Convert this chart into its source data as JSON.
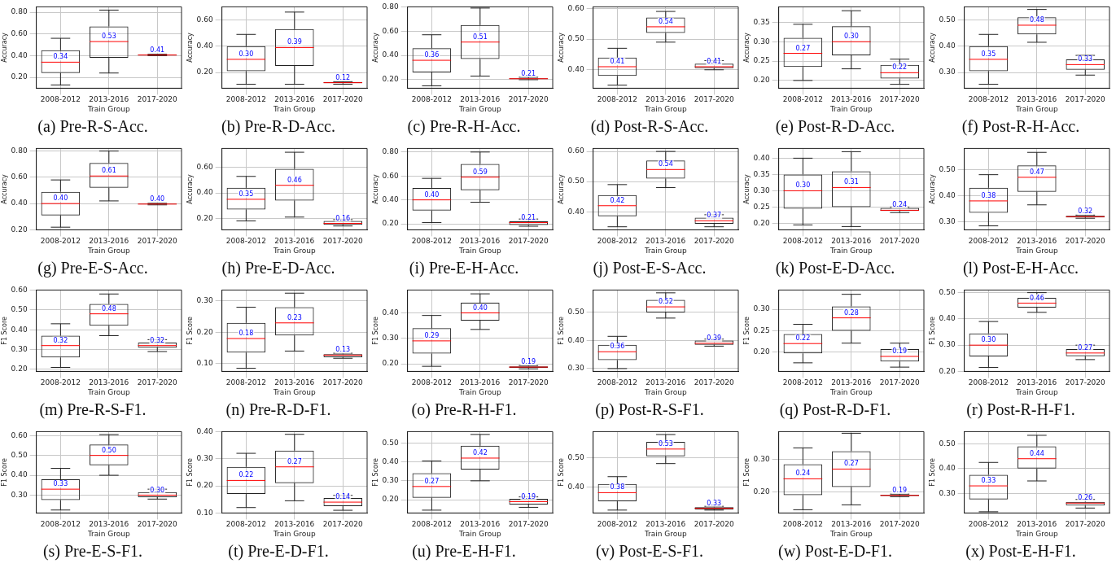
{
  "chart_data": [
    {
      "type": "box",
      "title": "(a) Pre-R-S-Acc.",
      "xlabel": "Train Group",
      "ylabel": "Accuracy",
      "categories": [
        "2008-2012",
        "2013-2016",
        "2017-2020"
      ],
      "ylim": [
        0.1,
        0.85
      ],
      "yticks": [
        {
          "value": 0.2,
          "label": "0.20"
        },
        {
          "value": 0.4,
          "label": "0.40"
        },
        {
          "value": 0.6,
          "label": "0.60"
        },
        {
          "value": 0.8,
          "label": "0.80"
        }
      ],
      "grid": true,
      "value_labels": [
        "0.34",
        "0.53",
        "0.41"
      ],
      "boxes": [
        {
          "low": 0.13,
          "q1": 0.24,
          "median": 0.34,
          "q3": 0.45,
          "high": 0.56
        },
        {
          "low": 0.24,
          "q1": 0.38,
          "median": 0.53,
          "q3": 0.67,
          "high": 0.82
        },
        {
          "low": 0.4,
          "q1": 0.403,
          "median": 0.406,
          "q3": 0.41,
          "high": 0.413
        }
      ]
    },
    {
      "type": "box",
      "title": "(b) Pre-R-D-Acc.",
      "xlabel": "Train Group",
      "ylabel": "Accuracy",
      "categories": [
        "2008-2012",
        "2013-2016",
        "2017-2020"
      ],
      "ylim": [
        0.08,
        0.7
      ],
      "yticks": [
        {
          "value": 0.2,
          "label": "0.20"
        },
        {
          "value": 0.4,
          "label": "0.40"
        },
        {
          "value": 0.6,
          "label": "0.60"
        }
      ],
      "grid": true,
      "value_labels": [
        "0.30",
        "0.39",
        "0.12"
      ],
      "boxes": [
        {
          "low": 0.11,
          "q1": 0.21,
          "median": 0.3,
          "q3": 0.4,
          "high": 0.49
        },
        {
          "low": 0.11,
          "q1": 0.25,
          "median": 0.39,
          "q3": 0.53,
          "high": 0.66
        },
        {
          "low": 0.11,
          "q1": 0.118,
          "median": 0.122,
          "q3": 0.127,
          "high": 0.13
        }
      ]
    },
    {
      "type": "box",
      "title": "(c) Pre-R-H-Acc.",
      "xlabel": "Train Group",
      "ylabel": "Accuracy",
      "categories": [
        "2008-2012",
        "2013-2016",
        "2017-2020"
      ],
      "ylim": [
        0.13,
        0.8
      ],
      "yticks": [
        {
          "value": 0.2,
          "label": "0.20"
        },
        {
          "value": 0.4,
          "label": "0.40"
        },
        {
          "value": 0.6,
          "label": "0.60"
        },
        {
          "value": 0.8,
          "label": "0.80"
        }
      ],
      "grid": true,
      "value_labels": [
        "0.36",
        "0.51",
        "0.21"
      ],
      "boxes": [
        {
          "low": 0.15,
          "q1": 0.26,
          "median": 0.36,
          "q3": 0.46,
          "high": 0.57
        },
        {
          "low": 0.23,
          "q1": 0.37,
          "median": 0.51,
          "q3": 0.65,
          "high": 0.79
        },
        {
          "low": 0.2,
          "q1": 0.205,
          "median": 0.208,
          "q3": 0.212,
          "high": 0.22
        }
      ]
    },
    {
      "type": "box",
      "title": "(d) Post-R-S-Acc.",
      "xlabel": "Train Group",
      "ylabel": "Accuracy",
      "categories": [
        "2008-2012",
        "2013-2016",
        "2017-2020"
      ],
      "ylim": [
        0.34,
        0.605
      ],
      "yticks": [
        {
          "value": 0.4,
          "label": "0.40"
        },
        {
          "value": 0.5,
          "label": "0.50"
        },
        {
          "value": 0.6,
          "label": "0.60"
        }
      ],
      "grid": true,
      "value_labels": [
        "0.41",
        "0.54",
        "0.41"
      ],
      "boxes": [
        {
          "low": 0.35,
          "q1": 0.38,
          "median": 0.41,
          "q3": 0.44,
          "high": 0.47
        },
        {
          "low": 0.49,
          "q1": 0.52,
          "median": 0.54,
          "q3": 0.57,
          "high": 0.59
        },
        {
          "low": 0.4,
          "q1": 0.405,
          "median": 0.41,
          "q3": 0.42,
          "high": 0.43
        }
      ]
    },
    {
      "type": "box",
      "title": "(e) Post-R-D-Acc.",
      "xlabel": "Train Group",
      "ylabel": "Accuracy",
      "categories": [
        "2008-2012",
        "2013-2016",
        "2017-2020"
      ],
      "ylim": [
        0.18,
        0.39
      ],
      "yticks": [
        {
          "value": 0.2,
          "label": "0.20"
        },
        {
          "value": 0.25,
          "label": "0.25"
        },
        {
          "value": 0.3,
          "label": "0.30"
        },
        {
          "value": 0.35,
          "label": "0.35"
        }
      ],
      "grid": true,
      "value_labels": [
        "0.27",
        "0.30",
        "0.22"
      ],
      "boxes": [
        {
          "low": 0.2,
          "q1": 0.235,
          "median": 0.27,
          "q3": 0.31,
          "high": 0.345
        },
        {
          "low": 0.23,
          "q1": 0.265,
          "median": 0.3,
          "q3": 0.34,
          "high": 0.38
        },
        {
          "low": 0.19,
          "q1": 0.205,
          "median": 0.22,
          "q3": 0.24,
          "high": 0.255
        }
      ]
    },
    {
      "type": "box",
      "title": "(f) Post-R-H-Acc.",
      "xlabel": "Train Group",
      "ylabel": "Accuracy",
      "categories": [
        "2008-2012",
        "2013-2016",
        "2017-2020"
      ],
      "ylim": [
        0.24,
        0.55
      ],
      "yticks": [
        {
          "value": 0.3,
          "label": "0.30"
        },
        {
          "value": 0.4,
          "label": "0.40"
        },
        {
          "value": 0.5,
          "label": "0.50"
        }
      ],
      "grid": true,
      "value_labels": [
        "0.35",
        "0.48",
        "0.33"
      ],
      "boxes": [
        {
          "low": 0.255,
          "q1": 0.305,
          "median": 0.35,
          "q3": 0.4,
          "high": 0.445
        },
        {
          "low": 0.415,
          "q1": 0.445,
          "median": 0.48,
          "q3": 0.51,
          "high": 0.54
        },
        {
          "low": 0.29,
          "q1": 0.31,
          "median": 0.33,
          "q3": 0.35,
          "high": 0.365
        }
      ]
    },
    {
      "type": "box",
      "title": "(g) Pre-E-S-Acc.",
      "xlabel": "Train Group",
      "ylabel": "Accuracy",
      "categories": [
        "2008-2012",
        "2013-2016",
        "2017-2020"
      ],
      "ylim": [
        0.2,
        0.82
      ],
      "yticks": [
        {
          "value": 0.2,
          "label": "0.20"
        },
        {
          "value": 0.4,
          "label": "0.40"
        },
        {
          "value": 0.6,
          "label": "0.60"
        },
        {
          "value": 0.8,
          "label": "0.80"
        }
      ],
      "grid": true,
      "value_labels": [
        "0.40",
        "0.61",
        "0.40"
      ],
      "boxes": [
        {
          "low": 0.22,
          "q1": 0.31,
          "median": 0.4,
          "q3": 0.49,
          "high": 0.58
        },
        {
          "low": 0.42,
          "q1": 0.52,
          "median": 0.61,
          "q3": 0.71,
          "high": 0.8
        },
        {
          "low": 0.39,
          "q1": 0.393,
          "median": 0.396,
          "q3": 0.4,
          "high": 0.402
        }
      ]
    },
    {
      "type": "box",
      "title": "(h) Pre-E-D-Acc.",
      "xlabel": "Train Group",
      "ylabel": "Accuracy",
      "categories": [
        "2008-2012",
        "2013-2016",
        "2017-2020"
      ],
      "ylim": [
        0.11,
        0.75
      ],
      "yticks": [
        {
          "value": 0.2,
          "label": "0.20"
        },
        {
          "value": 0.4,
          "label": "0.40"
        },
        {
          "value": 0.6,
          "label": "0.60"
        }
      ],
      "grid": true,
      "value_labels": [
        "0.35",
        "0.46",
        "0.16"
      ],
      "boxes": [
        {
          "low": 0.18,
          "q1": 0.27,
          "median": 0.35,
          "q3": 0.44,
          "high": 0.53
        },
        {
          "low": 0.21,
          "q1": 0.34,
          "median": 0.46,
          "q3": 0.59,
          "high": 0.72
        },
        {
          "low": 0.14,
          "q1": 0.15,
          "median": 0.16,
          "q3": 0.18,
          "high": 0.19
        }
      ]
    },
    {
      "type": "box",
      "title": "(i) Pre-E-H-Acc.",
      "xlabel": "Train Group",
      "ylabel": "Accuracy",
      "categories": [
        "2008-2012",
        "2013-2016",
        "2017-2020"
      ],
      "ylim": [
        0.15,
        0.83
      ],
      "yticks": [
        {
          "value": 0.2,
          "label": "0.20"
        },
        {
          "value": 0.4,
          "label": "0.40"
        },
        {
          "value": 0.6,
          "label": "0.60"
        },
        {
          "value": 0.8,
          "label": "0.80"
        }
      ],
      "grid": true,
      "value_labels": [
        "0.40",
        "0.59",
        "0.21"
      ],
      "boxes": [
        {
          "low": 0.21,
          "q1": 0.31,
          "median": 0.4,
          "q3": 0.5,
          "high": 0.58
        },
        {
          "low": 0.38,
          "q1": 0.48,
          "median": 0.59,
          "q3": 0.7,
          "high": 0.8
        },
        {
          "low": 0.18,
          "q1": 0.19,
          "median": 0.21,
          "q3": 0.22,
          "high": 0.24
        }
      ]
    },
    {
      "type": "box",
      "title": "(j) Post-E-S-Acc.",
      "xlabel": "Train Group",
      "ylabel": "Accuracy",
      "categories": [
        "2008-2012",
        "2013-2016",
        "2017-2020"
      ],
      "ylim": [
        0.34,
        0.61
      ],
      "yticks": [
        {
          "value": 0.4,
          "label": "0.40"
        },
        {
          "value": 0.5,
          "label": "0.50"
        },
        {
          "value": 0.6,
          "label": "0.60"
        }
      ],
      "grid": true,
      "value_labels": [
        "0.42",
        "0.54",
        "0.37"
      ],
      "boxes": [
        {
          "low": 0.35,
          "q1": 0.385,
          "median": 0.42,
          "q3": 0.455,
          "high": 0.49
        },
        {
          "low": 0.48,
          "q1": 0.51,
          "median": 0.54,
          "q3": 0.57,
          "high": 0.6
        },
        {
          "low": 0.35,
          "q1": 0.36,
          "median": 0.37,
          "q3": 0.38,
          "high": 0.39
        }
      ]
    },
    {
      "type": "box",
      "title": "(k) Post-E-D-Acc.",
      "xlabel": "Train Group",
      "ylabel": "Accuracy",
      "categories": [
        "2008-2012",
        "2013-2016",
        "2017-2020"
      ],
      "ylim": [
        0.18,
        0.43
      ],
      "yticks": [
        {
          "value": 0.2,
          "label": "0.20"
        },
        {
          "value": 0.25,
          "label": "0.25"
        },
        {
          "value": 0.3,
          "label": "0.30"
        },
        {
          "value": 0.35,
          "label": "0.35"
        },
        {
          "value": 0.4,
          "label": "0.40"
        }
      ],
      "grid": true,
      "value_labels": [
        "0.30",
        "0.31",
        "0.24"
      ],
      "boxes": [
        {
          "low": 0.195,
          "q1": 0.245,
          "median": 0.3,
          "q3": 0.35,
          "high": 0.4
        },
        {
          "low": 0.19,
          "q1": 0.25,
          "median": 0.31,
          "q3": 0.36,
          "high": 0.42
        },
        {
          "low": 0.233,
          "q1": 0.238,
          "median": 0.24,
          "q3": 0.247,
          "high": 0.25
        }
      ]
    },
    {
      "type": "box",
      "title": "(l) Post-E-H-Acc.",
      "xlabel": "Train Group",
      "ylabel": "Accuracy",
      "categories": [
        "2008-2012",
        "2013-2016",
        "2017-2020"
      ],
      "ylim": [
        0.27,
        0.58
      ],
      "yticks": [
        {
          "value": 0.3,
          "label": "0.30"
        },
        {
          "value": 0.4,
          "label": "0.40"
        },
        {
          "value": 0.5,
          "label": "0.50"
        }
      ],
      "grid": true,
      "value_labels": [
        "0.38",
        "0.47",
        "0.32"
      ],
      "boxes": [
        {
          "low": 0.285,
          "q1": 0.335,
          "median": 0.38,
          "q3": 0.43,
          "high": 0.48
        },
        {
          "low": 0.365,
          "q1": 0.415,
          "median": 0.47,
          "q3": 0.515,
          "high": 0.565
        },
        {
          "low": 0.314,
          "q1": 0.317,
          "median": 0.32,
          "q3": 0.323,
          "high": 0.326
        }
      ]
    },
    {
      "type": "box",
      "title": "(m) Pre-R-S-F1.",
      "xlabel": "Train Group",
      "ylabel": "F1 Score",
      "categories": [
        "2008-2012",
        "2013-2016",
        "2017-2020"
      ],
      "ylim": [
        0.19,
        0.6
      ],
      "yticks": [
        {
          "value": 0.2,
          "label": "0.20"
        },
        {
          "value": 0.3,
          "label": "0.30"
        },
        {
          "value": 0.4,
          "label": "0.40"
        },
        {
          "value": 0.5,
          "label": "0.50"
        },
        {
          "value": 0.6,
          "label": "0.60"
        }
      ],
      "grid": true,
      "value_labels": [
        "0.32",
        "0.48",
        "0.32"
      ],
      "boxes": [
        {
          "low": 0.21,
          "q1": 0.26,
          "median": 0.32,
          "q3": 0.37,
          "high": 0.43
        },
        {
          "low": 0.37,
          "q1": 0.42,
          "median": 0.48,
          "q3": 0.53,
          "high": 0.58
        },
        {
          "low": 0.29,
          "q1": 0.31,
          "median": 0.32,
          "q3": 0.335,
          "high": 0.35
        }
      ]
    },
    {
      "type": "box",
      "title": "(n) Pre-R-D-F1.",
      "xlabel": "Train Group",
      "ylabel": "F1 Score",
      "categories": [
        "2008-2012",
        "2013-2016",
        "2017-2020"
      ],
      "ylim": [
        0.075,
        0.335
      ],
      "yticks": [
        {
          "value": 0.1,
          "label": "0.10"
        },
        {
          "value": 0.2,
          "label": "0.20"
        },
        {
          "value": 0.3,
          "label": "0.30"
        }
      ],
      "grid": true,
      "value_labels": [
        "0.18",
        "0.23",
        "0.13"
      ],
      "boxes": [
        {
          "low": 0.085,
          "q1": 0.135,
          "median": 0.18,
          "q3": 0.23,
          "high": 0.28
        },
        {
          "low": 0.14,
          "q1": 0.19,
          "median": 0.23,
          "q3": 0.28,
          "high": 0.325
        },
        {
          "low": 0.117,
          "q1": 0.12,
          "median": 0.127,
          "q3": 0.13,
          "high": 0.133
        }
      ]
    },
    {
      "type": "box",
      "title": "(o) Pre-R-H-F1.",
      "xlabel": "Train Group",
      "ylabel": "F1 Score",
      "categories": [
        "2008-2012",
        "2013-2016",
        "2017-2020"
      ],
      "ylim": [
        0.17,
        0.49
      ],
      "yticks": [
        {
          "value": 0.2,
          "label": "0.20"
        },
        {
          "value": 0.3,
          "label": "0.30"
        },
        {
          "value": 0.4,
          "label": "0.40"
        }
      ],
      "grid": true,
      "value_labels": [
        "0.29",
        "0.40",
        "0.19"
      ],
      "boxes": [
        {
          "low": 0.19,
          "q1": 0.24,
          "median": 0.29,
          "q3": 0.34,
          "high": 0.39
        },
        {
          "low": 0.335,
          "q1": 0.37,
          "median": 0.4,
          "q3": 0.44,
          "high": 0.475
        },
        {
          "low": 0.18,
          "q1": 0.183,
          "median": 0.187,
          "q3": 0.19,
          "high": 0.193
        }
      ]
    },
    {
      "type": "box",
      "title": "(p) Post-R-S-F1.",
      "xlabel": "Train Group",
      "ylabel": "F1 Score",
      "categories": [
        "2008-2012",
        "2013-2016",
        "2017-2020"
      ],
      "ylim": [
        0.29,
        0.58
      ],
      "yticks": [
        {
          "value": 0.3,
          "label": "0.30"
        },
        {
          "value": 0.4,
          "label": "0.40"
        },
        {
          "value": 0.5,
          "label": "0.50"
        }
      ],
      "grid": true,
      "value_labels": [
        "0.36",
        "0.52",
        "0.39"
      ],
      "boxes": [
        {
          "low": 0.3,
          "q1": 0.33,
          "median": 0.36,
          "q3": 0.385,
          "high": 0.415
        },
        {
          "low": 0.48,
          "q1": 0.5,
          "median": 0.52,
          "q3": 0.545,
          "high": 0.57
        },
        {
          "low": 0.38,
          "q1": 0.385,
          "median": 0.39,
          "q3": 0.4,
          "high": 0.405
        }
      ]
    },
    {
      "type": "box",
      "title": "(q) Post-R-D-F1.",
      "xlabel": "Train Group",
      "ylabel": "F1 Score",
      "categories": [
        "2008-2012",
        "2013-2016",
        "2017-2020"
      ],
      "ylim": [
        0.155,
        0.345
      ],
      "yticks": [
        {
          "value": 0.2,
          "label": "0.20"
        },
        {
          "value": 0.25,
          "label": "0.25"
        },
        {
          "value": 0.3,
          "label": "0.30"
        }
      ],
      "grid": true,
      "value_labels": [
        "0.22",
        "0.28",
        "0.19"
      ],
      "boxes": [
        {
          "low": 0.175,
          "q1": 0.197,
          "median": 0.22,
          "q3": 0.242,
          "high": 0.265
        },
        {
          "low": 0.221,
          "q1": 0.25,
          "median": 0.28,
          "q3": 0.307,
          "high": 0.335
        },
        {
          "low": 0.165,
          "q1": 0.178,
          "median": 0.19,
          "q3": 0.207,
          "high": 0.221
        }
      ]
    },
    {
      "type": "box",
      "title": "(r) Post-R-H-F1.",
      "xlabel": "Train Group",
      "ylabel": "F1 Score",
      "categories": [
        "2008-2012",
        "2013-2016",
        "2017-2020"
      ],
      "ylim": [
        0.2,
        0.51
      ],
      "yticks": [
        {
          "value": 0.2,
          "label": "0.20"
        },
        {
          "value": 0.3,
          "label": "0.30"
        },
        {
          "value": 0.4,
          "label": "0.40"
        },
        {
          "value": 0.5,
          "label": "0.50"
        }
      ],
      "grid": true,
      "value_labels": [
        "0.30",
        "0.46",
        "0.27"
      ],
      "boxes": [
        {
          "low": 0.215,
          "q1": 0.257,
          "median": 0.3,
          "q3": 0.345,
          "high": 0.39
        },
        {
          "low": 0.425,
          "q1": 0.443,
          "median": 0.46,
          "q3": 0.48,
          "high": 0.5
        },
        {
          "low": 0.245,
          "q1": 0.258,
          "median": 0.27,
          "q3": 0.285,
          "high": 0.3
        }
      ]
    },
    {
      "type": "box",
      "title": "(s) Pre-E-S-F1.",
      "xlabel": "Train Group",
      "ylabel": "F1 Score",
      "categories": [
        "2008-2012",
        "2013-2016",
        "2017-2020"
      ],
      "ylim": [
        0.21,
        0.62
      ],
      "yticks": [
        {
          "value": 0.3,
          "label": "0.30"
        },
        {
          "value": 0.4,
          "label": "0.40"
        },
        {
          "value": 0.5,
          "label": "0.50"
        },
        {
          "value": 0.6,
          "label": "0.60"
        }
      ],
      "grid": true,
      "value_labels": [
        "0.33",
        "0.50",
        "0.30"
      ],
      "boxes": [
        {
          "low": 0.225,
          "q1": 0.275,
          "median": 0.33,
          "q3": 0.38,
          "high": 0.435
        },
        {
          "low": 0.4,
          "q1": 0.45,
          "median": 0.5,
          "q3": 0.555,
          "high": 0.605
        },
        {
          "low": 0.28,
          "q1": 0.29,
          "median": 0.3,
          "q3": 0.315,
          "high": 0.33
        }
      ]
    },
    {
      "type": "box",
      "title": "(t) Pre-E-D-F1.",
      "xlabel": "Train Group",
      "ylabel": "F1 Score",
      "categories": [
        "2008-2012",
        "2013-2016",
        "2017-2020"
      ],
      "ylim": [
        0.1,
        0.4
      ],
      "yticks": [
        {
          "value": 0.1,
          "label": "0.10"
        },
        {
          "value": 0.2,
          "label": "0.20"
        },
        {
          "value": 0.3,
          "label": "0.30"
        },
        {
          "value": 0.4,
          "label": "0.40"
        }
      ],
      "grid": true,
      "value_labels": [
        "0.22",
        "0.27",
        "0.14"
      ],
      "boxes": [
        {
          "low": 0.12,
          "q1": 0.17,
          "median": 0.22,
          "q3": 0.27,
          "high": 0.32
        },
        {
          "low": 0.145,
          "q1": 0.21,
          "median": 0.27,
          "q3": 0.33,
          "high": 0.39
        },
        {
          "low": 0.11,
          "q1": 0.125,
          "median": 0.14,
          "q3": 0.155,
          "high": 0.165
        }
      ]
    },
    {
      "type": "box",
      "title": "(u) Pre-E-H-F1.",
      "xlabel": "Train Group",
      "ylabel": "F1 Score",
      "categories": [
        "2008-2012",
        "2013-2016",
        "2017-2020"
      ],
      "ylim": [
        0.13,
        0.56
      ],
      "yticks": [
        {
          "value": 0.2,
          "label": "0.20"
        },
        {
          "value": 0.3,
          "label": "0.30"
        },
        {
          "value": 0.4,
          "label": "0.40"
        },
        {
          "value": 0.5,
          "label": "0.50"
        }
      ],
      "grid": true,
      "value_labels": [
        "0.27",
        "0.42",
        "0.19"
      ],
      "boxes": [
        {
          "low": 0.145,
          "q1": 0.21,
          "median": 0.27,
          "q3": 0.34,
          "high": 0.405
        },
        {
          "low": 0.3,
          "q1": 0.36,
          "median": 0.42,
          "q3": 0.485,
          "high": 0.545
        },
        {
          "low": 0.16,
          "q1": 0.175,
          "median": 0.19,
          "q3": 0.205,
          "high": 0.215
        }
      ]
    },
    {
      "type": "box",
      "title": "(v) Post-E-S-F1.",
      "xlabel": "Train Group",
      "ylabel": "F1 Score",
      "categories": [
        "2008-2012",
        "2013-2016",
        "2017-2020"
      ],
      "ylim": [
        0.31,
        0.59
      ],
      "yticks": [
        {
          "value": 0.4,
          "label": "0.40"
        },
        {
          "value": 0.5,
          "label": "0.50"
        }
      ],
      "grid": true,
      "value_labels": [
        "0.38",
        "0.53",
        "0.33"
      ],
      "boxes": [
        {
          "low": 0.32,
          "q1": 0.35,
          "median": 0.38,
          "q3": 0.41,
          "high": 0.435
        },
        {
          "low": 0.48,
          "q1": 0.505,
          "median": 0.53,
          "q3": 0.555,
          "high": 0.58
        },
        {
          "low": 0.32,
          "q1": 0.322,
          "median": 0.326,
          "q3": 0.33,
          "high": 0.333
        }
      ]
    },
    {
      "type": "box",
      "title": "(w) Post-E-D-F1.",
      "xlabel": "Train Group",
      "ylabel": "F1 Score",
      "categories": [
        "2008-2012",
        "2013-2016",
        "2017-2020"
      ],
      "ylim": [
        0.135,
        0.385
      ],
      "yticks": [
        {
          "value": 0.2,
          "label": "0.20"
        },
        {
          "value": 0.3,
          "label": "0.30"
        }
      ],
      "grid": true,
      "value_labels": [
        "0.24",
        "0.27",
        "0.19"
      ],
      "boxes": [
        {
          "low": 0.145,
          "q1": 0.19,
          "median": 0.24,
          "q3": 0.285,
          "high": 0.335
        },
        {
          "low": 0.16,
          "q1": 0.215,
          "median": 0.27,
          "q3": 0.325,
          "high": 0.38
        },
        {
          "low": 0.185,
          "q1": 0.187,
          "median": 0.189,
          "q3": 0.191,
          "high": 0.193
        }
      ]
    },
    {
      "type": "box",
      "title": "(x) Post-E-H-F1.",
      "xlabel": "Train Group",
      "ylabel": "F1 Score",
      "categories": [
        "2008-2012",
        "2013-2016",
        "2017-2020"
      ],
      "ylim": [
        0.22,
        0.55
      ],
      "yticks": [
        {
          "value": 0.3,
          "label": "0.30"
        },
        {
          "value": 0.4,
          "label": "0.40"
        },
        {
          "value": 0.5,
          "label": "0.50"
        }
      ],
      "grid": true,
      "value_labels": [
        "0.33",
        "0.44",
        "0.26"
      ],
      "boxes": [
        {
          "low": 0.225,
          "q1": 0.275,
          "median": 0.33,
          "q3": 0.375,
          "high": 0.425
        },
        {
          "low": 0.35,
          "q1": 0.4,
          "median": 0.44,
          "q3": 0.49,
          "high": 0.535
        },
        {
          "low": 0.24,
          "q1": 0.25,
          "median": 0.26,
          "q3": 0.265,
          "high": 0.275
        }
      ]
    }
  ]
}
